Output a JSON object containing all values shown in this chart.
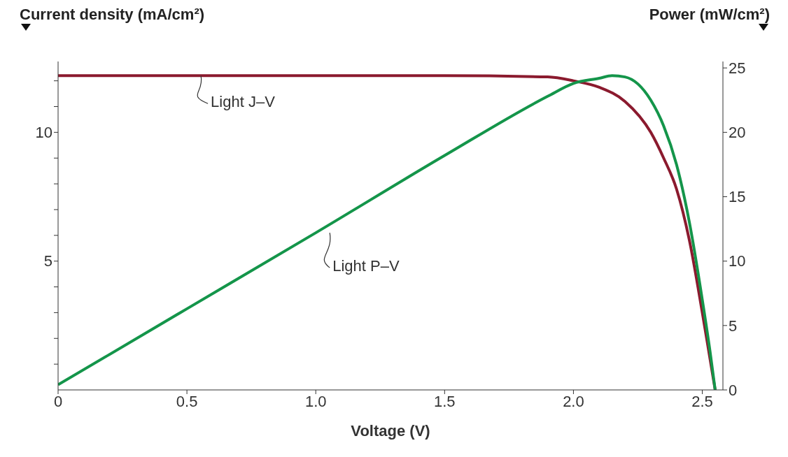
{
  "chart_data": {
    "type": "line",
    "xlabel": "Voltage (V)",
    "ylabel": "Current density (mA/cm²)",
    "y2label": "Power (mW/cm²)",
    "xlim": [
      0,
      2.58
    ],
    "xticks": [
      0,
      {
        "value": 0.5,
        "label": "0.5"
      },
      {
        "value": 1,
        "label": "1.0"
      },
      {
        "value": 1.5,
        "label": "1.5"
      },
      {
        "value": 2,
        "label": "2.0"
      },
      {
        "value": 2.5,
        "label": "2.5"
      }
    ],
    "ylim": [
      0,
      12.75
    ],
    "yticks": [
      {
        "value": 1,
        "label": null
      },
      {
        "value": 2,
        "label": null
      },
      {
        "value": 3,
        "label": null
      },
      {
        "value": 4,
        "label": null
      },
      5,
      {
        "value": 6,
        "label": null
      },
      {
        "value": 7,
        "label": null
      },
      {
        "value": 8,
        "label": null
      },
      {
        "value": 9,
        "label": null
      },
      10,
      {
        "value": 11,
        "label": null
      },
      {
        "value": 12,
        "label": null
      }
    ],
    "y2lim": [
      0,
      25.5
    ],
    "y2ticks": [
      0,
      5,
      10,
      15,
      20,
      25
    ],
    "marker": "none",
    "line_style": "solid",
    "series": [
      {
        "name": "Light J–V",
        "color": "#8b1a2e",
        "x": [
          0,
          0.5,
          1.0,
          1.5,
          1.9,
          2.0,
          2.1,
          2.2,
          2.3,
          2.35,
          2.4,
          2.45,
          2.5,
          2.53,
          2.55
        ],
        "values": [
          12.2,
          12.2,
          12.2,
          12.2,
          12.15,
          12.0,
          11.75,
          11.2,
          10.0,
          9.0,
          7.8,
          5.8,
          3.0,
          1.2,
          0
        ]
      },
      {
        "name": "Light P–V",
        "color": "#14954a",
        "axis": "y2",
        "x": [
          0,
          0.5,
          1.0,
          1.5,
          1.9,
          2.0,
          2.1,
          2.15,
          2.2,
          2.3,
          2.35,
          2.4,
          2.45,
          2.5,
          2.53,
          2.55
        ],
        "values": [
          0.4,
          6.3,
          12.2,
          18.2,
          22.8,
          23.8,
          24.2,
          24.4,
          24.3,
          22.5,
          20.5,
          17.5,
          13,
          7,
          3,
          0
        ]
      }
    ]
  }
}
